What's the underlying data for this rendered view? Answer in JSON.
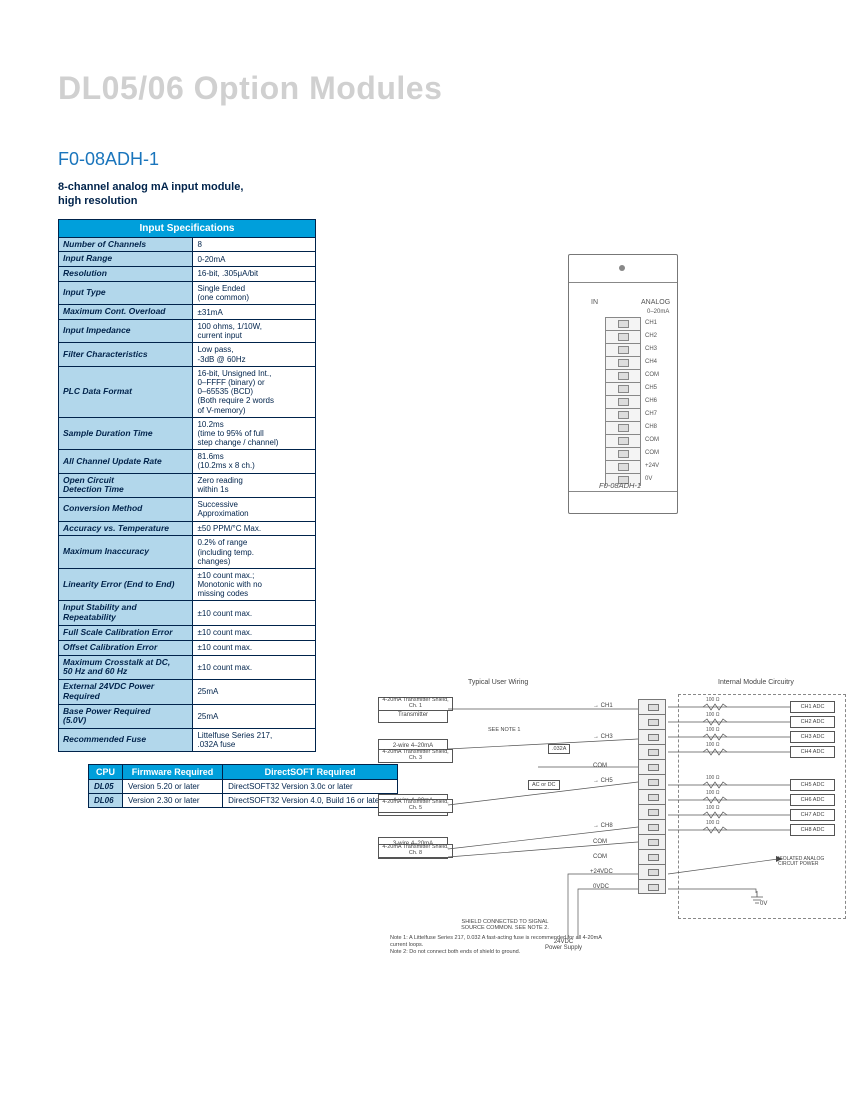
{
  "page_title": "DL05/06 Option Modules",
  "part_number": "F0-08ADH-1",
  "description": "8-channel analog mA input module,\nhigh resolution",
  "spec_table": {
    "header": "Input Specifications",
    "colors": {
      "header_bg": "#009fdb",
      "header_text": "#ffffff",
      "label_bg": "#b2d7eb",
      "border": "#00234b",
      "text": "#00234b"
    },
    "rows": [
      {
        "label": "Number of Channels",
        "value": "8"
      },
      {
        "label": "Input Range",
        "value": "0-20mA"
      },
      {
        "label": "Resolution",
        "value": "16-bit, .305μA/bit"
      },
      {
        "label": "Input Type",
        "value": "Single Ended\n(one common)"
      },
      {
        "label": "Maximum Cont. Overload",
        "value": "±31mA"
      },
      {
        "label": "Input Impedance",
        "value": "100 ohms, 1/10W,\ncurrent input"
      },
      {
        "label": "Filter Characteristics",
        "value": "Low pass,\n-3dB @ 60Hz"
      },
      {
        "label": "PLC Data Format",
        "value": "16-bit, Unsigned Int.,\n0–FFFF (binary) or\n0–65535 (BCD)\n(Both require 2 words\nof V-memory)"
      },
      {
        "label": "Sample Duration Time",
        "value": "10.2ms\n(time to 95% of full\nstep change / channel)"
      },
      {
        "label": "All Channel Update Rate",
        "value": "81.6ms\n(10.2ms x 8 ch.)"
      },
      {
        "label": "Open Circuit\nDetection Time",
        "value": "Zero reading\nwithin 1s"
      },
      {
        "label": "Conversion Method",
        "value": "Successive\nApproximation"
      },
      {
        "label": "Accuracy vs. Temperature",
        "value": "±50 PPM/°C Max."
      },
      {
        "label": "Maximum Inaccuracy",
        "value": "0.2% of range\n(including temp.\nchanges)"
      },
      {
        "label": "Linearity Error (End to End)",
        "value": "±10 count max.;\nMonotonic with no\nmissing codes"
      },
      {
        "label": "Input Stability and\nRepeatability",
        "value": "±10 count max."
      },
      {
        "label": "Full Scale Calibration Error",
        "value": "±10 count max."
      },
      {
        "label": "Offset Calibration Error",
        "value": "±10 count max."
      },
      {
        "label": "Maximum Crosstalk at DC,\n50 Hz and 60 Hz",
        "value": "±10 count max."
      },
      {
        "label": "External 24VDC Power\nRequired",
        "value": "25mA"
      },
      {
        "label": "Base Power Required\n(5.0V)",
        "value": "25mA"
      },
      {
        "label": "Recommended Fuse",
        "value": "Littelfuse Series 217,\n.032A fuse"
      }
    ]
  },
  "cpu_table": {
    "headers": [
      "CPU",
      "Firmware Required",
      "DirectSOFT Required"
    ],
    "rows": [
      {
        "cpu": "DL05",
        "fw": "Version 5.20 or later",
        "ds": "DirectSOFT32 Version 3.0c or later"
      },
      {
        "cpu": "DL06",
        "fw": "Version 2.30 or later",
        "ds": "DirectSOFT32 Version 4.0, Build 16 or later"
      }
    ]
  },
  "module": {
    "label_in": "IN",
    "label_analog": "ANALOG",
    "label_range": "0–20mA",
    "terminals": [
      "CH1",
      "CH2",
      "CH3",
      "CH4",
      "COM",
      "CH5",
      "CH6",
      "CH7",
      "CH8",
      "COM",
      "COM",
      "+24V",
      "0V"
    ],
    "part_label": "F0-08ADH-1"
  },
  "wiring": {
    "title_left": "Typical User Wiring",
    "title_right": "Internal Module Circuitry",
    "transmitters": [
      "2-wire 4–20mA\nTransmitter",
      "2-wire 4–20mA\nTransmitter",
      "4-wire 4–20mA\nTransmitter",
      "3-wire 4–20mA\nTransmitter"
    ],
    "shields": [
      "4-20mA Transmitter\nShield, Ch. 1",
      "4-20mA Transmitter\nShield, Ch. 3",
      "4-20mA Transmitter\nShield, Ch. 5",
      "4-20mA Transmitter\nShield, Ch. 8"
    ],
    "fuse_label": ".032A",
    "see_note": "SEE NOTE 1",
    "acdc_label": "AC or DC",
    "ch_labels": [
      "CH1",
      "CH3",
      "CH5",
      "CH8"
    ],
    "term_labels": [
      "CH1",
      "CH2",
      "CH3",
      "CH4",
      "COM",
      "CH5",
      "CH6",
      "CH7",
      "CH8",
      "COM",
      "COM",
      "+24VDC",
      "0VDC"
    ],
    "adc": [
      "CH1 ADC",
      "CH2 ADC",
      "CH3 ADC",
      "CH4 ADC",
      "CH5 ADC",
      "CH6 ADC",
      "CH7 ADC",
      "CH8 ADC"
    ],
    "res_label": "100 Ω",
    "iso_label": "ISOLATED ANALOG\nCIRCUIT POWER",
    "zero_v": "0V",
    "ps_label": "24VDC\nPower Supply",
    "shield_note": "SHIELD CONNECTED TO SIGNAL\nSOURCE COMMON. SEE NOTE 2.",
    "note1": "Note 1: A Littelfuse Series 217, 0.032 A fast-acting fuse is recommended for all 4-20mA current loops.",
    "note2": "Note 2: Do not connect both ends of shield to ground."
  }
}
